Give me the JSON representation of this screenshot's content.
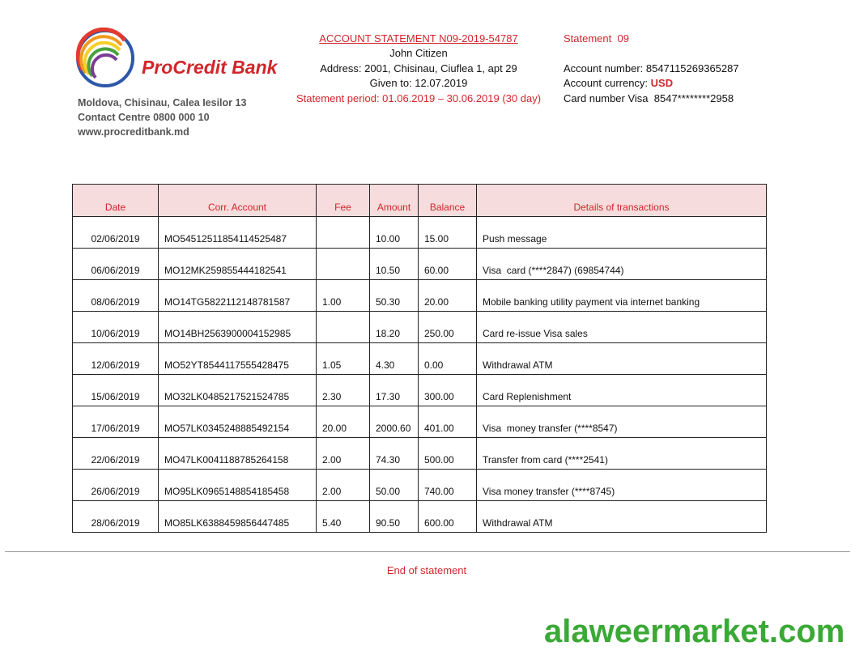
{
  "bank": {
    "name": "ProCredit Bank",
    "address": [
      "Moldova, Chisinau, Calea Iesilor 13",
      "Contact Centre 0800 000 10",
      "www.procreditbank.md"
    ]
  },
  "statement": {
    "title": "ACCOUNT STATEMENT N09-2019-54787",
    "client": "John Citizen",
    "address": "Address: 2001, Chisinau, Ciuflea 1, apt 29",
    "given": "Given to: 12.07.2019",
    "period": "Statement period: 01.06.2019 – 30.06.2019 (30 day)"
  },
  "account": {
    "statement_no": "Statement  09",
    "number": "Account number: 8547115269365287",
    "currency_label": "Account currency:",
    "currency": "USD",
    "card": "Card number Visa  8547********2958"
  },
  "table": {
    "header": [
      "Date",
      "Corr. Account",
      "Fee",
      "Amount",
      "Balance",
      "Details of transactions"
    ],
    "rows": [
      [
        "02/06/2019",
        "MO54512511854114525487",
        "",
        "10.00",
        "15.00",
        "Push message"
      ],
      [
        "06/06/2019",
        "MO12MK259855444182541",
        "",
        "10.50",
        "60.00",
        "Visa  card (****2847) (69854744)"
      ],
      [
        "08/06/2019",
        "MO14TG5822112148781587",
        "1.00",
        "50.30",
        "20.00",
        "Mobile banking utility payment via internet banking"
      ],
      [
        "10/06/2019",
        "MO14BH2563900004152985",
        "",
        "18.20",
        "250.00",
        "Card re-issue Visa sales"
      ],
      [
        "12/06/2019",
        "MO52YT8544117555428475",
        "1.05",
        "4.30",
        "0.00",
        "Withdrawal ATM"
      ],
      [
        "15/06/2019",
        "MO32LK0485217521524785",
        "2.30",
        "17.30",
        "300.00",
        "Card Replenishment"
      ],
      [
        "17/06/2019",
        "MO57LK0345248885492154",
        "20.00",
        "2000.60",
        "401.00",
        "Visa  money transfer (****8547)"
      ],
      [
        "22/06/2019",
        "MO47LK0041188785264158",
        "2.00",
        "74.30",
        "500.00",
        "Transfer from card (****2541)"
      ],
      [
        "26/06/2019",
        "MO95LK0965148854185458",
        "2.00",
        "50.00",
        "740.00",
        "Visa money transfer (****8745)"
      ],
      [
        "28/06/2019",
        "MO85LK6388459856447485",
        "5.40",
        "90.50",
        "600.00",
        "Withdrawal ATM"
      ]
    ]
  },
  "footer": "End of statement",
  "watermark": "alaweermarket.com"
}
